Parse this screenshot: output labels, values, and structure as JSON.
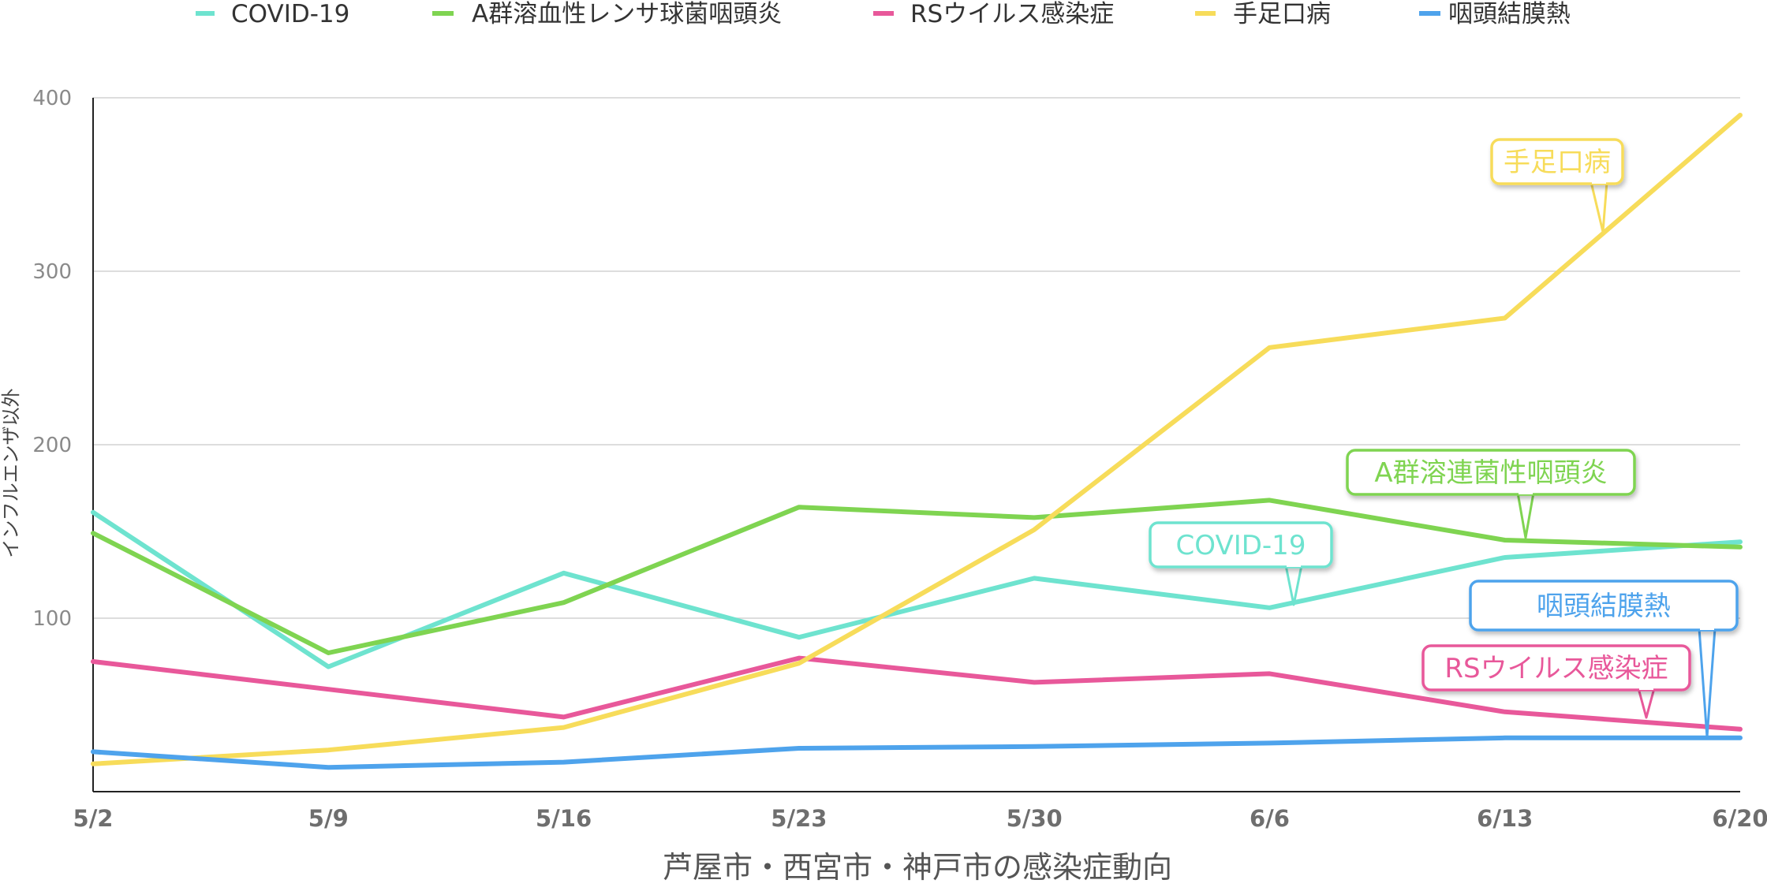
{
  "chart_data": {
    "type": "line",
    "xlabel": "芦屋市・西宮市・神戸市の感染症動向",
    "ylabel": "インフルエンザ以外",
    "categories": [
      "5/2",
      "5/9",
      "5/16",
      "5/23",
      "5/30",
      "6/6",
      "6/13",
      "6/20"
    ],
    "ylim": [
      0,
      400
    ],
    "yticks": [
      100,
      200,
      300,
      400
    ],
    "grid": true,
    "legend_position": "top",
    "series": [
      {
        "name": "COVID-19",
        "color": "#6ee3cf",
        "values": [
          161,
          72,
          126,
          89,
          123,
          106,
          135,
          144
        ]
      },
      {
        "name": "A群溶血性レンサ球菌咽頭炎",
        "color": "#7fd451",
        "values": [
          149,
          80,
          109,
          164,
          158,
          168,
          145,
          141
        ]
      },
      {
        "name": "RSウイルス感染症",
        "color": "#e8589a",
        "values": [
          75,
          59,
          43,
          77,
          63,
          68,
          46,
          36
        ]
      },
      {
        "name": "手足口病",
        "color": "#f7dc5a",
        "values": [
          16,
          24,
          37,
          74,
          151,
          256,
          273,
          390
        ]
      },
      {
        "name": "咽頭結膜熱",
        "color": "#4ea3ec",
        "values": [
          23,
          14,
          17,
          25,
          26,
          28,
          31,
          31
        ]
      }
    ],
    "annotations": [
      {
        "text": "手足口病",
        "series": 3,
        "color": "#f7dc5a"
      },
      {
        "text": "A群溶連菌性咽頭炎",
        "series": 1,
        "color": "#7fd451"
      },
      {
        "text": "COVID-19",
        "series": 0,
        "color": "#6ee3cf"
      },
      {
        "text": "咽頭結膜熱",
        "series": 4,
        "color": "#4ea3ec"
      },
      {
        "text": "RSウイルス感染症",
        "series": 2,
        "color": "#e8589a"
      }
    ]
  }
}
